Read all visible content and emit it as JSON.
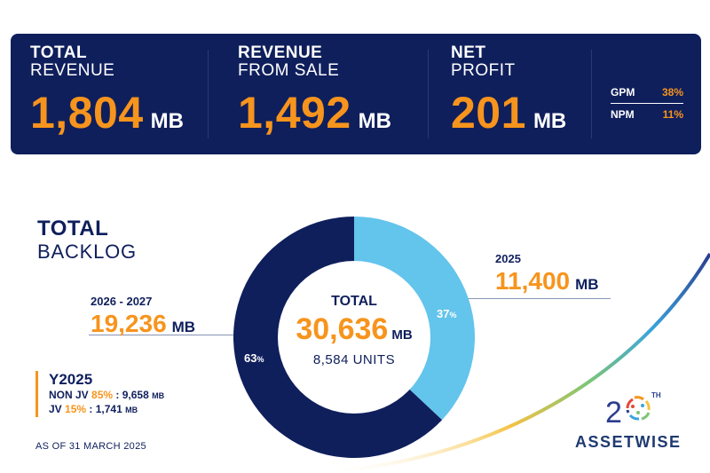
{
  "kpis": [
    {
      "title": "TOTAL",
      "subtitle": "REVENUE",
      "value": "1,804",
      "unit": "MB"
    },
    {
      "title": "REVENUE",
      "subtitle": "FROM SALE",
      "value": "1,492",
      "unit": "MB"
    },
    {
      "title": "NET",
      "subtitle": "PROFIT",
      "value": "201",
      "unit": "MB"
    }
  ],
  "ratios": [
    {
      "label": "GPM",
      "value": "38%"
    },
    {
      "label": "NPM",
      "value": "11%"
    }
  ],
  "backlog": {
    "title": "TOTAL",
    "subtitle": "BACKLOG",
    "center": {
      "label": "TOTAL",
      "value": "30,636",
      "unit": "MB",
      "units": "8,584 UNITS"
    },
    "segments": [
      {
        "label": "2026 - 2027",
        "value": "19,236",
        "unit": "MB",
        "pct": "63",
        "pct_sign": "%",
        "share": 0.63,
        "color": "#0f1f5c"
      },
      {
        "label": "2025",
        "value": "11,400",
        "unit": "MB",
        "pct": "37",
        "pct_sign": "%",
        "share": 0.37,
        "color": "#63c4ec"
      }
    ],
    "y2025": {
      "title": "Y2025",
      "rows": [
        {
          "label": "NON JV",
          "pct": "85%",
          "sep": ":",
          "value": "9,658",
          "unit": "MB"
        },
        {
          "label": "JV",
          "pct": "15%",
          "sep": ":",
          "value": "1,741",
          "unit": "MB"
        }
      ]
    },
    "as_of": "AS OF 31 MARCH 2025"
  },
  "logo": {
    "anniversary": "20",
    "sup": "TH",
    "brand": "ASSETWISE"
  }
}
